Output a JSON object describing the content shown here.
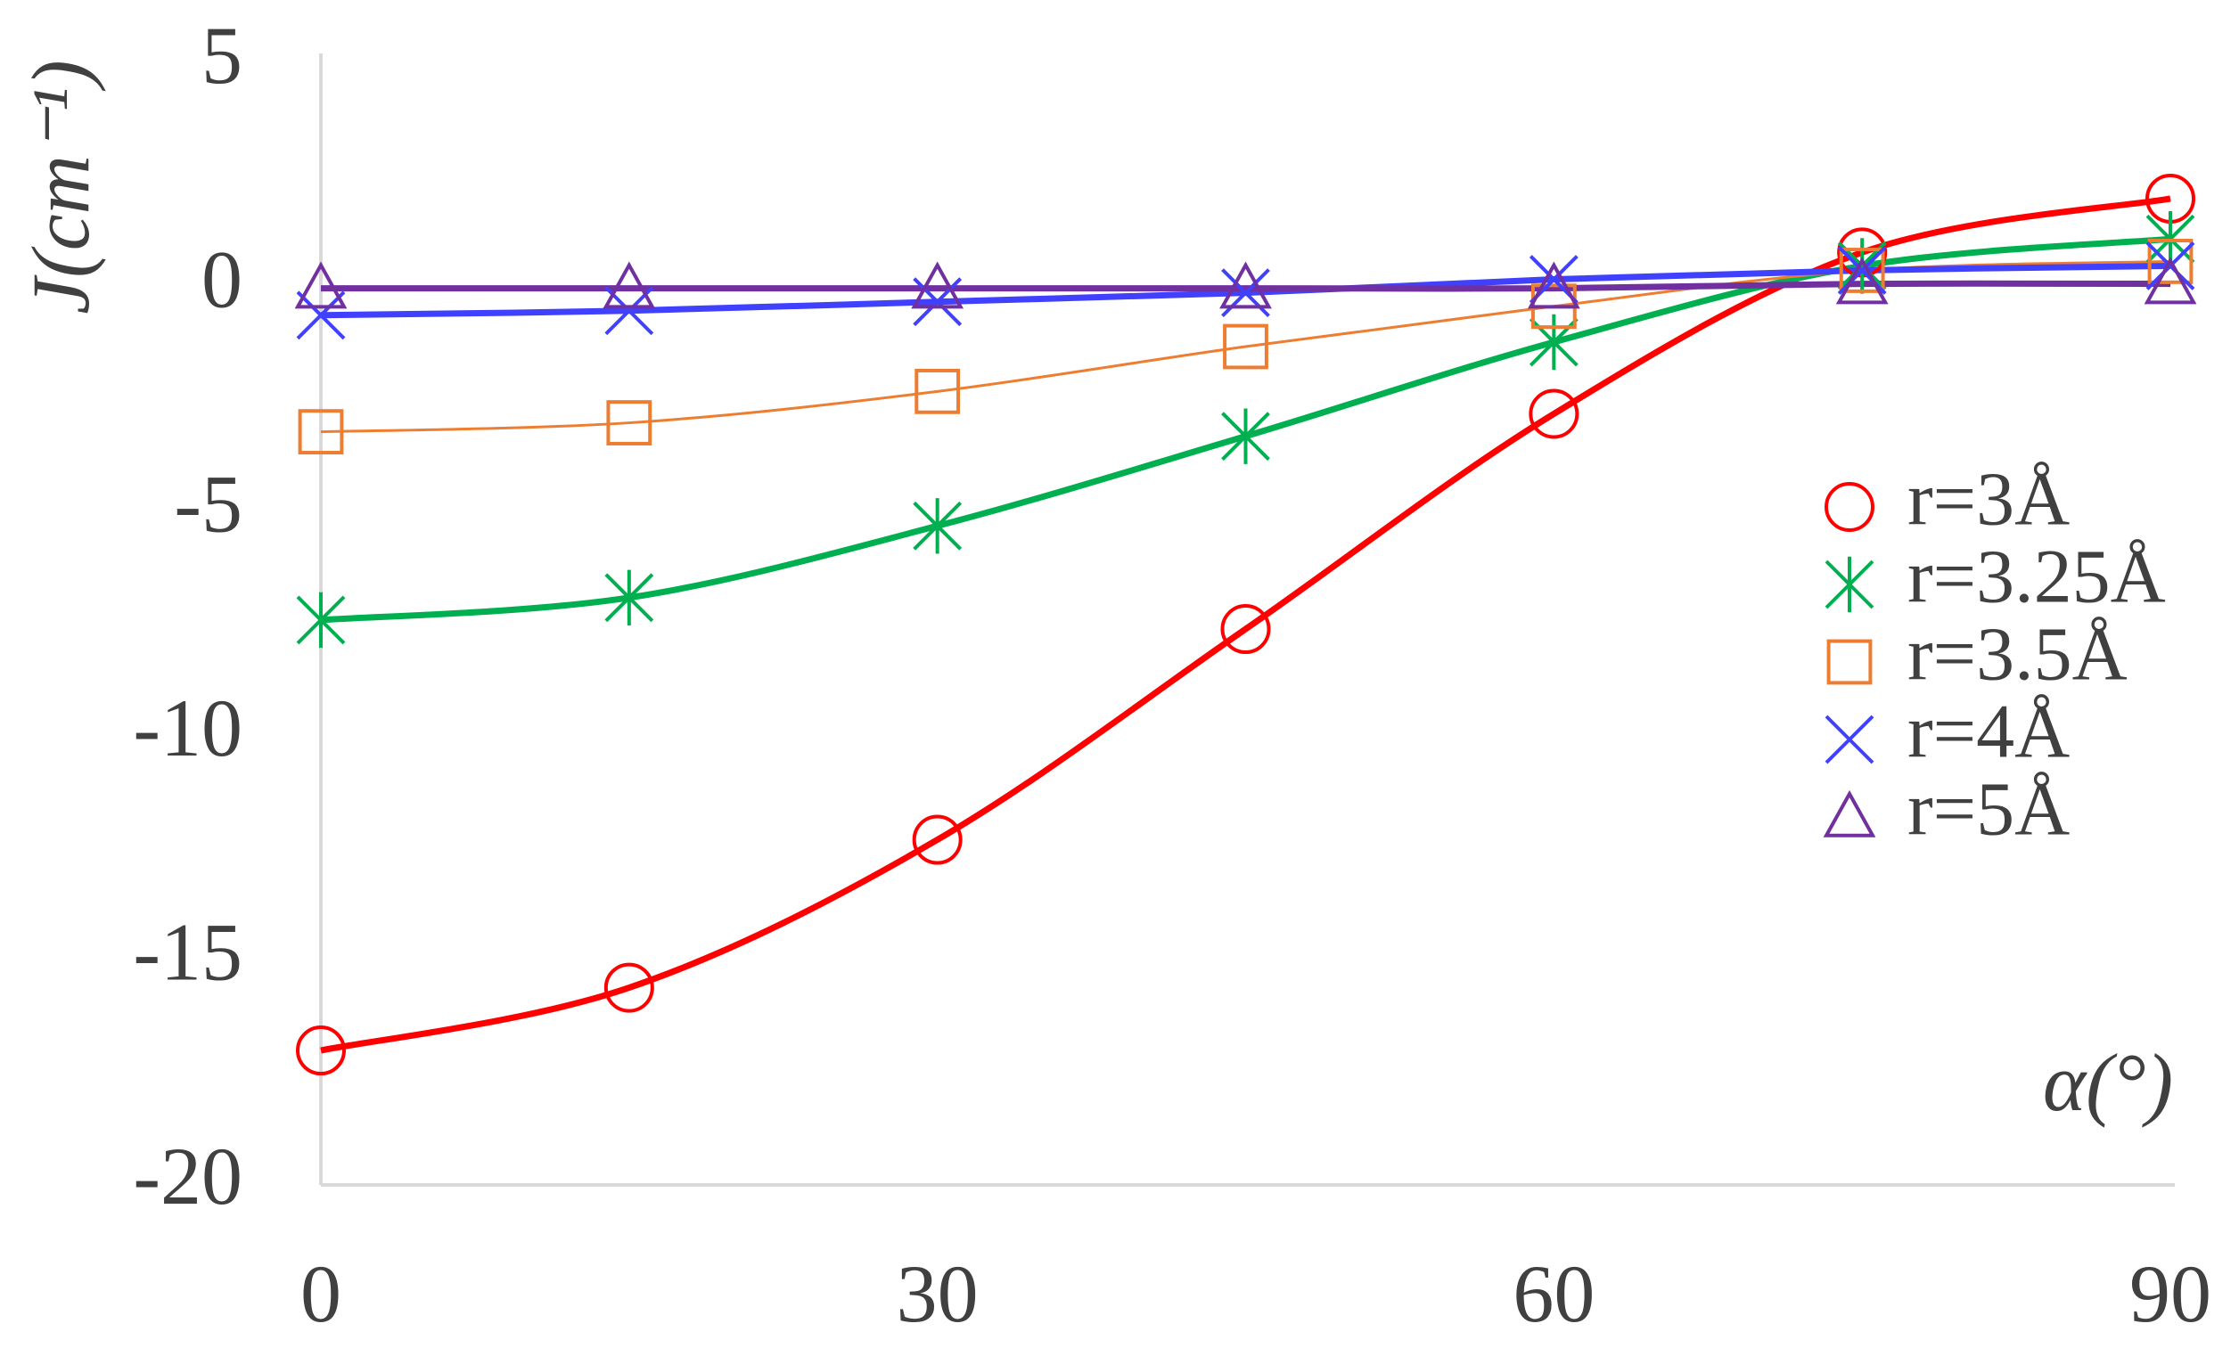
{
  "chart_data": {
    "type": "line",
    "y_label": "J(cm⁻¹)",
    "x_label": "α(°)",
    "x": [
      0,
      15,
      30,
      45,
      60,
      75,
      90
    ],
    "xlim": [
      0,
      90
    ],
    "xticks": [
      0,
      30,
      60,
      90
    ],
    "ylim": [
      -20,
      5
    ],
    "yticks": [
      -20,
      -15,
      -10,
      -5,
      0,
      5
    ],
    "grid": false,
    "legend": "right",
    "series": [
      {
        "name": "r=3Å",
        "color": "#ff0000",
        "marker": "circle",
        "values": [
          -17.0,
          -15.6,
          -12.3,
          -7.6,
          -2.8,
          0.8,
          2.0
        ]
      },
      {
        "name": "r=3.25Å",
        "color": "#00b050",
        "marker": "asterisk",
        "values": [
          -7.4,
          -6.9,
          -5.3,
          -3.3,
          -1.2,
          0.5,
          1.1
        ]
      },
      {
        "name": "r=3.5Å",
        "color": "#ed7d31",
        "marker": "square",
        "values": [
          -3.2,
          -3.0,
          -2.3,
          -1.3,
          -0.4,
          0.4,
          0.6
        ]
      },
      {
        "name": "r=4Å",
        "color": "#4040ff",
        "marker": "x",
        "values": [
          -0.6,
          -0.5,
          -0.3,
          -0.1,
          0.2,
          0.4,
          0.5
        ]
      },
      {
        "name": "r=5Å",
        "color": "#7030a0",
        "marker": "triangle",
        "values": [
          0,
          0,
          0,
          0,
          0,
          0.1,
          0.1
        ]
      }
    ]
  }
}
